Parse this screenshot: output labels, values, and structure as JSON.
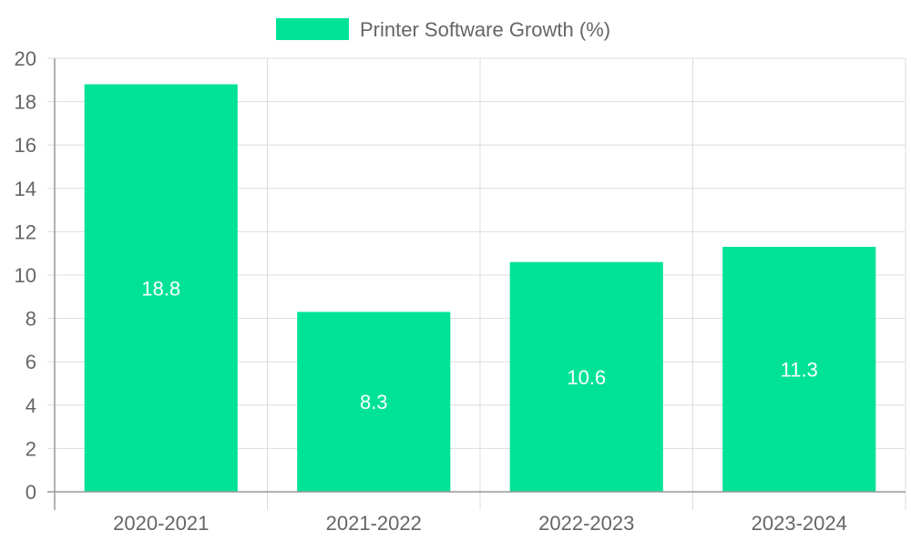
{
  "chart_data": {
    "type": "bar",
    "categories": [
      "2020-2021",
      "2021-2022",
      "2022-2023",
      "2023-2024"
    ],
    "series": [
      {
        "name": "Printer Software Growth (%)",
        "values": [
          18.8,
          8.3,
          10.6,
          11.3
        ],
        "color": "#00e396"
      }
    ],
    "y_ticks": [
      "0",
      "2",
      "4",
      "6",
      "8",
      "10",
      "12",
      "14",
      "16",
      "18",
      "20"
    ],
    "ylim": [
      0,
      20
    ],
    "grid": true,
    "legend_position": "top-center",
    "data_labels": [
      "18.8",
      "8.3",
      "10.6",
      "11.3"
    ]
  },
  "colors": {
    "grid": "#dddddd",
    "axis": "#999999",
    "text": "#666666",
    "data_label": "#ffffff"
  }
}
